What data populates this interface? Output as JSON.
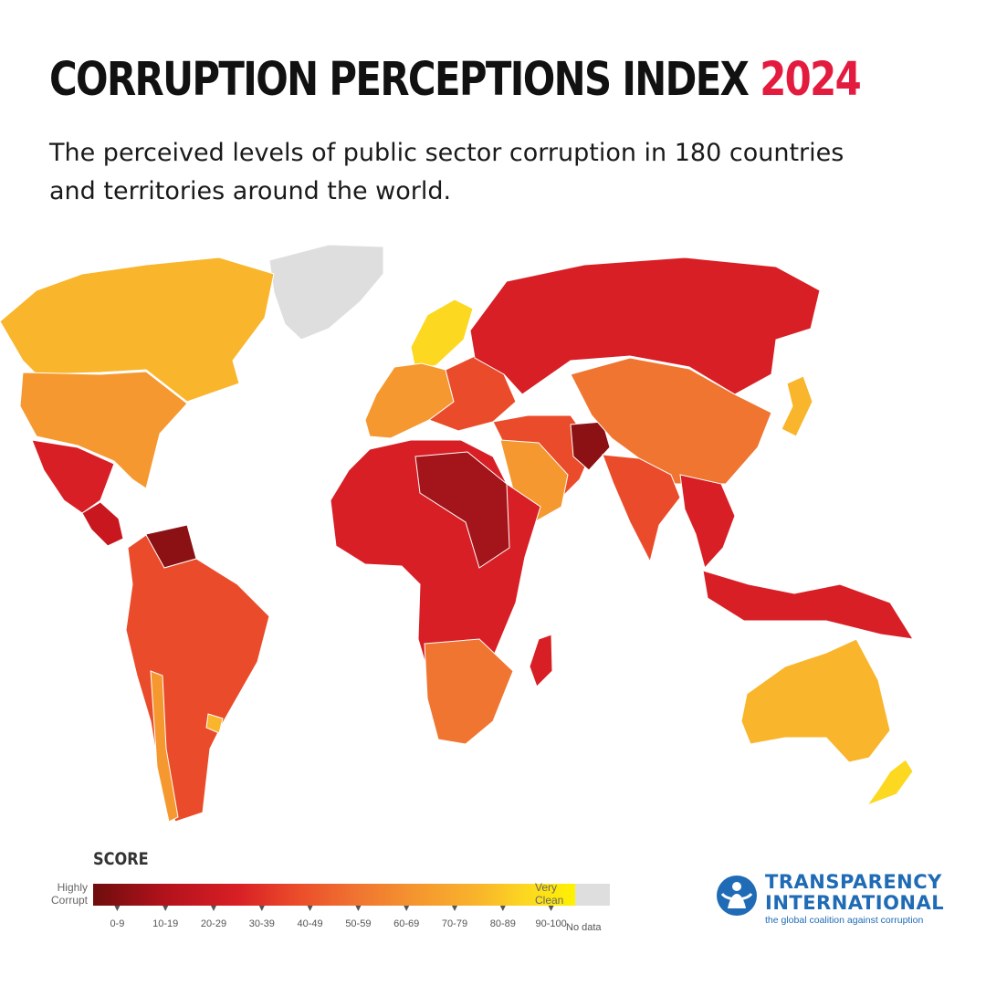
{
  "header": {
    "title": "CORRUPTION PERCEPTIONS INDEX",
    "year": "2024",
    "subtitle": "The perceived levels of public sector corruption in 180 countries and territories around the world."
  },
  "map": {
    "region_colors": {
      "greenland": "#dedede",
      "canada": "#f9b52b",
      "usa": "#f5982f",
      "mexico": "#d81f25",
      "central_america": "#c8171f",
      "south_america": "#ea4b2a",
      "chile": "#f5982f",
      "uruguay": "#f9b52b",
      "venezuela": "#8b1114",
      "western_europe": "#f5982f",
      "nordics": "#fcd820",
      "eastern_europe": "#ea4b2a",
      "russia": "#d81f25",
      "middle_east": "#ea4b2a",
      "saudi_arabia": "#f5982f",
      "afghanistan": "#8b1114",
      "africa": "#d81f25",
      "libya_sudan": "#a3151a",
      "southern_africa": "#f07531",
      "china": "#f07531",
      "india": "#ea4b2a",
      "southeast_asia": "#d81f25",
      "japan": "#f9b52b",
      "australia": "#f9b52b",
      "new_zealand": "#fcd820"
    }
  },
  "legend": {
    "title": "SCORE",
    "low_label": [
      "Highly",
      "Corrupt"
    ],
    "high_label": [
      "Very",
      "Clean"
    ],
    "ranges": [
      "0-9",
      "10-19",
      "20-29",
      "30-39",
      "40-49",
      "50-59",
      "60-69",
      "70-79",
      "80-89",
      "90-100"
    ],
    "no_data_label": "No data",
    "no_data_color": "#dedede"
  },
  "logo": {
    "name_line1": "TRANSPARENCY",
    "name_line2": "INTERNATIONAL",
    "tagline": "the global coalition against corruption",
    "color": "#1f6bb5"
  }
}
